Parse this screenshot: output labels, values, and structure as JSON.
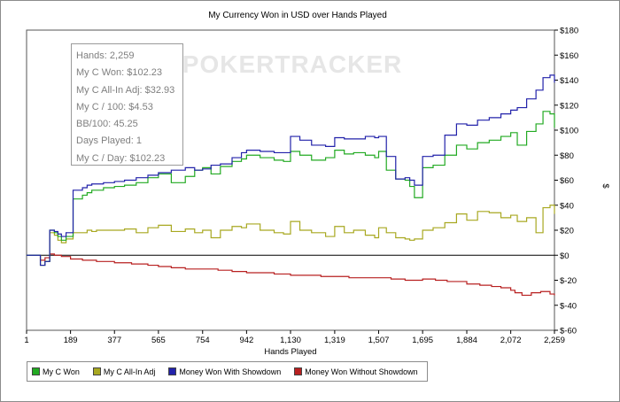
{
  "chart_data": {
    "type": "line",
    "title": "My Currency Won in USD over Hands Played",
    "xlabel": "Hands Played",
    "ylabel": "$",
    "xlim": [
      1,
      2259
    ],
    "ylim": [
      -60,
      180
    ],
    "x_ticks": [
      "1",
      "189",
      "377",
      "565",
      "754",
      "942",
      "1,130",
      "1,319",
      "1,507",
      "1,695",
      "1,884",
      "2,072",
      "2,259"
    ],
    "x_tick_values": [
      1,
      189,
      377,
      565,
      754,
      942,
      1130,
      1319,
      1507,
      1695,
      1884,
      2072,
      2259
    ],
    "y_ticks": [
      "$180",
      "$160",
      "$140",
      "$120",
      "$100",
      "$80",
      "$60",
      "$40",
      "$20",
      "$0",
      "$-20",
      "$-40",
      "$-60"
    ],
    "y_tick_values": [
      180,
      160,
      140,
      120,
      100,
      80,
      60,
      40,
      20,
      0,
      -20,
      -40,
      -60
    ],
    "watermark": "POKERTRACKER",
    "series": [
      {
        "name": "My C Won",
        "color": "#22aa22",
        "x": [
          1,
          40,
          60,
          80,
          100,
          120,
          135,
          150,
          170,
          200,
          240,
          260,
          280,
          300,
          330,
          377,
          420,
          470,
          520,
          565,
          620,
          680,
          720,
          754,
          790,
          830,
          880,
          920,
          942,
          1000,
          1060,
          1100,
          1130,
          1170,
          1220,
          1280,
          1319,
          1360,
          1400,
          1450,
          1490,
          1507,
          1540,
          1580,
          1620,
          1640,
          1660,
          1695,
          1740,
          1790,
          1840,
          1884,
          1930,
          1980,
          2030,
          2072,
          2100,
          2140,
          2180,
          2210,
          2240,
          2259
        ],
        "y": [
          0,
          0,
          -8,
          -5,
          20,
          18,
          15,
          12,
          15,
          45,
          48,
          50,
          52,
          52,
          54,
          55,
          56,
          58,
          62,
          65,
          58,
          63,
          68,
          70,
          65,
          71,
          75,
          77,
          80,
          78,
          76,
          75,
          83,
          80,
          76,
          78,
          84,
          81,
          82,
          80,
          78,
          83,
          68,
          61,
          60,
          55,
          46,
          70,
          72,
          80,
          88,
          85,
          90,
          92,
          95,
          98,
          88,
          99,
          105,
          115,
          113,
          102
        ]
      },
      {
        "name": "My C All-In Adj",
        "color": "#a8a820",
        "x": [
          1,
          40,
          60,
          80,
          100,
          120,
          135,
          150,
          170,
          200,
          240,
          260,
          280,
          300,
          330,
          377,
          420,
          470,
          520,
          565,
          620,
          680,
          720,
          754,
          790,
          830,
          880,
          920,
          942,
          1000,
          1060,
          1100,
          1130,
          1170,
          1220,
          1280,
          1319,
          1360,
          1400,
          1450,
          1490,
          1507,
          1540,
          1580,
          1620,
          1640,
          1660,
          1695,
          1740,
          1790,
          1840,
          1884,
          1930,
          1980,
          2030,
          2072,
          2100,
          2140,
          2180,
          2210,
          2240,
          2259
        ],
        "y": [
          0,
          0,
          -8,
          -5,
          18,
          16,
          12,
          10,
          13,
          18,
          18,
          20,
          19,
          20,
          20,
          20,
          21,
          18,
          22,
          24,
          19,
          21,
          18,
          20,
          14,
          20,
          23,
          22,
          25,
          20,
          18,
          17,
          27,
          20,
          18,
          15,
          23,
          18,
          20,
          16,
          14,
          22,
          18,
          14,
          13,
          12,
          13,
          20,
          22,
          26,
          33,
          28,
          35,
          34,
          30,
          32,
          27,
          30,
          18,
          38,
          40,
          33
        ]
      },
      {
        "name": "Money Won With Showdown",
        "color": "#2222aa",
        "x": [
          1,
          40,
          60,
          80,
          100,
          120,
          135,
          150,
          170,
          200,
          240,
          260,
          280,
          300,
          330,
          377,
          420,
          470,
          520,
          565,
          620,
          680,
          720,
          754,
          790,
          830,
          880,
          920,
          942,
          1000,
          1060,
          1100,
          1130,
          1170,
          1220,
          1280,
          1319,
          1360,
          1400,
          1450,
          1490,
          1507,
          1540,
          1580,
          1620,
          1640,
          1660,
          1695,
          1740,
          1790,
          1840,
          1884,
          1930,
          1980,
          2030,
          2072,
          2100,
          2140,
          2180,
          2210,
          2240,
          2259
        ],
        "y": [
          0,
          0,
          -8,
          -5,
          20,
          19,
          17,
          15,
          18,
          52,
          54,
          56,
          57,
          57,
          58,
          59,
          60,
          62,
          64,
          66,
          68,
          70,
          68,
          69,
          72,
          73,
          78,
          82,
          84,
          83,
          82,
          82,
          95,
          92,
          88,
          87,
          94,
          93,
          93,
          95,
          94,
          95,
          79,
          61,
          62,
          60,
          56,
          79,
          80,
          96,
          105,
          104,
          108,
          110,
          113,
          116,
          118,
          125,
          132,
          142,
          144,
          138
        ]
      },
      {
        "name": "Money Won Without Showdown",
        "color": "#b82020",
        "x": [
          1,
          40,
          60,
          80,
          100,
          120,
          150,
          189,
          240,
          300,
          377,
          450,
          520,
          565,
          620,
          680,
          754,
          820,
          880,
          942,
          1000,
          1060,
          1130,
          1200,
          1260,
          1319,
          1380,
          1440,
          1507,
          1560,
          1620,
          1695,
          1750,
          1800,
          1884,
          1940,
          1990,
          2030,
          2072,
          2090,
          2120,
          2160,
          2200,
          2240,
          2259
        ],
        "y": [
          0,
          0,
          -4,
          -2,
          1,
          0,
          -1,
          -3,
          -4,
          -5,
          -6,
          -7,
          -8,
          -9,
          -10,
          -11,
          -11,
          -12,
          -13,
          -14,
          -14,
          -15,
          -16,
          -16,
          -17,
          -17,
          -18,
          -18,
          -18,
          -19,
          -20,
          -19,
          -20,
          -21,
          -23,
          -24,
          -25,
          -26,
          -28,
          -30,
          -32,
          -30,
          -29,
          -31,
          -32
        ]
      }
    ]
  },
  "stats": {
    "hands": "Hands: 2,259",
    "won": "My C Won: $102.23",
    "all_in_adj": "My C All-In Adj: $32.93",
    "per_100": "My C / 100: $4.53",
    "bb_100": "BB/100: 45.25",
    "days": "Days Played: 1",
    "per_day": "My C / Day: $102.23"
  },
  "legend": {
    "items": [
      {
        "label": "My C Won",
        "color": "#22aa22"
      },
      {
        "label": "My C All-In Adj",
        "color": "#a8a820"
      },
      {
        "label": "Money Won With Showdown",
        "color": "#2222aa"
      },
      {
        "label": "Money Won Without Showdown",
        "color": "#b82020"
      }
    ]
  }
}
